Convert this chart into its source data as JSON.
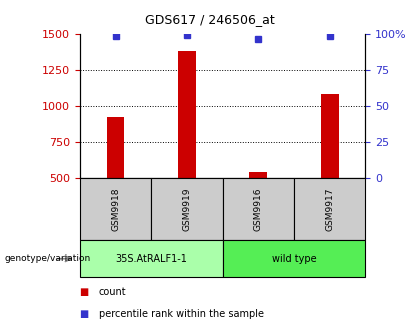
{
  "title": "GDS617 / 246506_at",
  "samples": [
    "GSM9918",
    "GSM9919",
    "GSM9916",
    "GSM9917"
  ],
  "bar_values": [
    920,
    1380,
    540,
    1080
  ],
  "percentile_values": [
    98,
    99,
    96,
    98
  ],
  "bar_color": "#cc0000",
  "percentile_color": "#3333cc",
  "ylim_left": [
    500,
    1500
  ],
  "ylim_right": [
    0,
    100
  ],
  "yticks_left": [
    500,
    750,
    1000,
    1250,
    1500
  ],
  "yticks_right": [
    0,
    25,
    50,
    75,
    100
  ],
  "ytick_labels_right": [
    "0",
    "25",
    "50",
    "75",
    "100%"
  ],
  "genotype_groups": [
    {
      "label": "35S.AtRALF1-1",
      "color": "#aaffaa",
      "indices": [
        0,
        1
      ]
    },
    {
      "label": "wild type",
      "color": "#55ee55",
      "indices": [
        2,
        3
      ]
    }
  ],
  "legend_entries": [
    {
      "label": "count",
      "color": "#cc0000"
    },
    {
      "label": "percentile rank within the sample",
      "color": "#3333cc"
    }
  ],
  "genotype_label": "genotype/variation",
  "tick_label_color_left": "#cc0000",
  "tick_label_color_right": "#3333cc",
  "sample_box_color": "#cccccc",
  "gridline_color": "#000000",
  "bar_width": 0.25
}
